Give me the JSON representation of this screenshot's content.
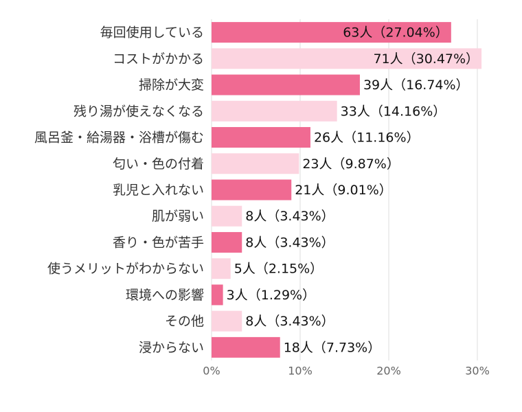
{
  "chart_data": {
    "type": "hbar",
    "categories": [
      "毎回使用している",
      "コストがかかる",
      "掃除が大変",
      "残り湯が使えなくなる",
      "風呂釜・給湯器・浴槽が傷む",
      "匂い・色の付着",
      "乳児と入れない",
      "肌が弱い",
      "香り・色が苦手",
      "使うメリットがわからない",
      "環境への影響",
      "その他",
      "浸からない"
    ],
    "values": [
      27.04,
      30.47,
      16.74,
      14.16,
      11.16,
      9.87,
      9.01,
      3.43,
      3.43,
      2.15,
      1.29,
      3.43,
      7.73
    ],
    "value_labels": [
      "63人（27.04%）",
      "71人（30.47%）",
      "39人（16.74%）",
      "33人（14.16%）",
      "26人（11.16%）",
      "23人（9.87%）",
      "21人（9.01%）",
      "8人（3.43%）",
      "8人（3.43%）",
      "5人（2.15%）",
      "3人（1.29%）",
      "8人（3.43%）",
      "18人（7.73%）"
    ],
    "colors": [
      "#f06a92",
      "#fcd4e0",
      "#f06a92",
      "#fcd4e0",
      "#f06a92",
      "#fcd4e0",
      "#f06a92",
      "#fcd4e0",
      "#f06a92",
      "#fcd4e0",
      "#f06a92",
      "#fcd4e0",
      "#f06a92"
    ],
    "xlim": [
      0,
      30
    ],
    "xticks": [
      {
        "value": 0,
        "label": "0%"
      },
      {
        "value": 10,
        "label": "10%"
      },
      {
        "value": 20,
        "label": "20%"
      },
      {
        "value": 30,
        "label": "30%"
      }
    ],
    "grid": true
  }
}
